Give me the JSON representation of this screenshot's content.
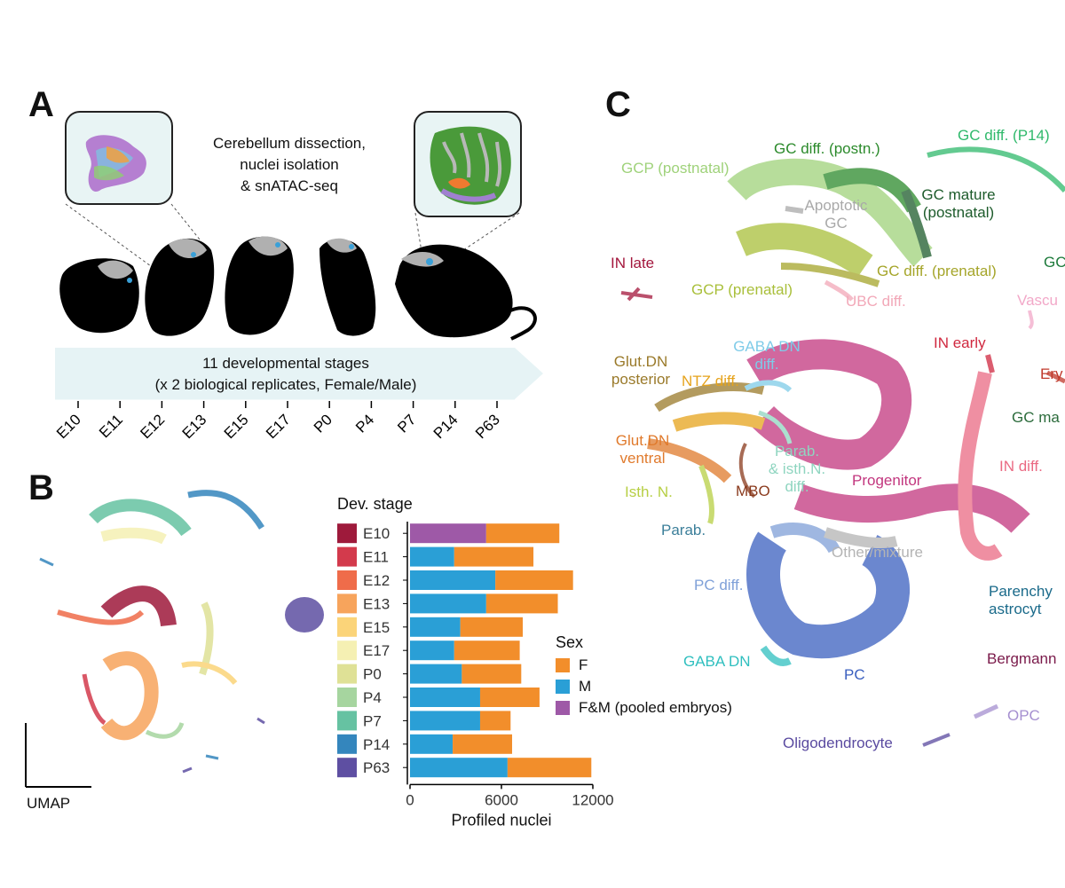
{
  "panels": {
    "a": "A",
    "b": "B",
    "c": "C"
  },
  "panel_a": {
    "caption_lines": [
      "Cerebellum dissection,",
      "nuclei isolation",
      "& snATAC-seq"
    ],
    "arrow_lines": [
      "11 developmental stages",
      "(x 2 biological replicates, Female/Male)"
    ],
    "stages": [
      "E10",
      "E11",
      "E12",
      "E13",
      "E15",
      "E17",
      "P0",
      "P4",
      "P7",
      "P14",
      "P63"
    ]
  },
  "panel_b": {
    "umap_label": "UMAP",
    "legend_title": "Dev. stage",
    "stage_colors": [
      "#9e1a3b",
      "#d33a4c",
      "#ef6c4a",
      "#f7a45c",
      "#fbd479",
      "#f5f0b3",
      "#dfe196",
      "#a6d59f",
      "#66c2a2",
      "#3486bd",
      "#5e4fa2"
    ],
    "sex_legend_title": "Sex",
    "sex_colors": {
      "F": "#f28e2b",
      "M": "#2a9fd6",
      "FM": "#9e59a7"
    }
  },
  "chart_data": {
    "type": "bar",
    "orientation": "horizontal",
    "stacked": true,
    "categories": [
      "E10",
      "E11",
      "E12",
      "E13",
      "E15",
      "E17",
      "P0",
      "P4",
      "P7",
      "P14",
      "P63"
    ],
    "series": [
      {
        "name": "F&M (pooled embryos)",
        "values": [
          5000,
          0,
          0,
          0,
          0,
          0,
          0,
          0,
          0,
          0,
          0
        ]
      },
      {
        "name": "M",
        "values": [
          0,
          2900,
          5600,
          5000,
          3300,
          2900,
          3400,
          4600,
          4600,
          2800,
          6400
        ]
      },
      {
        "name": "F",
        "values": [
          4800,
          5200,
          5100,
          4700,
          4100,
          4300,
          3900,
          3900,
          2000,
          3900,
          5500
        ]
      }
    ],
    "xlabel": "Profiled nuclei",
    "xlim": [
      0,
      12000
    ],
    "xticks": [
      "0",
      "6000",
      "12000"
    ],
    "legend": [
      {
        "key": "F",
        "label": "F"
      },
      {
        "key": "M",
        "label": "M"
      },
      {
        "key": "FM",
        "label": "F&M (pooled embryos)"
      }
    ]
  },
  "panel_c": {
    "labels": [
      {
        "id": "gcp-postnatal",
        "text": "GCP (postnatal)",
        "color": "#9fd27a"
      },
      {
        "id": "gc-diff-postn",
        "text": "GC diff. (postn.)",
        "color": "#2b8a2b"
      },
      {
        "id": "gc-diff-p14",
        "text": "GC diff. (P14)",
        "color": "#2fb96b"
      },
      {
        "id": "apoptotic-gc",
        "text": "Apoptotic\nGC",
        "color": "#a9a9a9"
      },
      {
        "id": "gc-mature-postnatal",
        "text": "GC mature\n(postnatal)",
        "color": "#1d5b2b"
      },
      {
        "id": "gc-cut",
        "text": "GC",
        "color": "#1d7a3b"
      },
      {
        "id": "in-late",
        "text": "IN late",
        "color": "#a3163c"
      },
      {
        "id": "gc-diff-prenatal",
        "text": "GC diff. (prenatal)",
        "color": "#a5a52a"
      },
      {
        "id": "gcp-prenatal",
        "text": "GCP (prenatal)",
        "color": "#a9bf3a"
      },
      {
        "id": "ubc-diff",
        "text": "UBC diff.",
        "color": "#f2a8b8"
      },
      {
        "id": "vasc",
        "text": "Vascu",
        "color": "#f2a8c8"
      },
      {
        "id": "gaba-dn-diff",
        "text": "GABA DN\ndiff.",
        "color": "#7ecbe8"
      },
      {
        "id": "in-early",
        "text": "IN early",
        "color": "#d0283f"
      },
      {
        "id": "glut-dn-posterior",
        "text": "Glut.DN\nposterior",
        "color": "#9a7a2a"
      },
      {
        "id": "ntz-diff",
        "text": "NTZ diff.",
        "color": "#e6a31c"
      },
      {
        "id": "ery",
        "text": "Ery",
        "color": "#c0392b"
      },
      {
        "id": "gc-ma",
        "text": "GC ma",
        "color": "#2b6b3b"
      },
      {
        "id": "glut-dn-ventral",
        "text": "Glut.DN\nventral",
        "color": "#e07a2c"
      },
      {
        "id": "parab-isth-diff",
        "text": "Parab.\n& isth.N.\ndiff.",
        "color": "#8fd5c0"
      },
      {
        "id": "in-diff",
        "text": "IN diff.",
        "color": "#ea6a83"
      },
      {
        "id": "progenitor",
        "text": "Progenitor",
        "color": "#c2367e"
      },
      {
        "id": "isth-n",
        "text": "Isth. N.",
        "color": "#b7cf44"
      },
      {
        "id": "mbo",
        "text": "MBO",
        "color": "#8a3a1d"
      },
      {
        "id": "parab",
        "text": "Parab.",
        "color": "#3c7f9a"
      },
      {
        "id": "other-mixture",
        "text": "Other/mixture",
        "color": "#b4b4b4"
      },
      {
        "id": "pc-diff",
        "text": "PC diff.",
        "color": "#7fa0d8"
      },
      {
        "id": "parenchymal-astro",
        "text": "Parenchy\nastrocyt",
        "color": "#1a6a8a"
      },
      {
        "id": "gaba-dn",
        "text": "GABA DN",
        "color": "#2fbfbf"
      },
      {
        "id": "pc",
        "text": "PC",
        "color": "#3a5fbf"
      },
      {
        "id": "bergmann",
        "text": "Bergmann",
        "color": "#7a1a4a"
      },
      {
        "id": "opc",
        "text": "OPC",
        "color": "#a58fd0"
      },
      {
        "id": "oligodendrocyte",
        "text": "Oligodendrocyte",
        "color": "#5a4aa0"
      }
    ]
  }
}
